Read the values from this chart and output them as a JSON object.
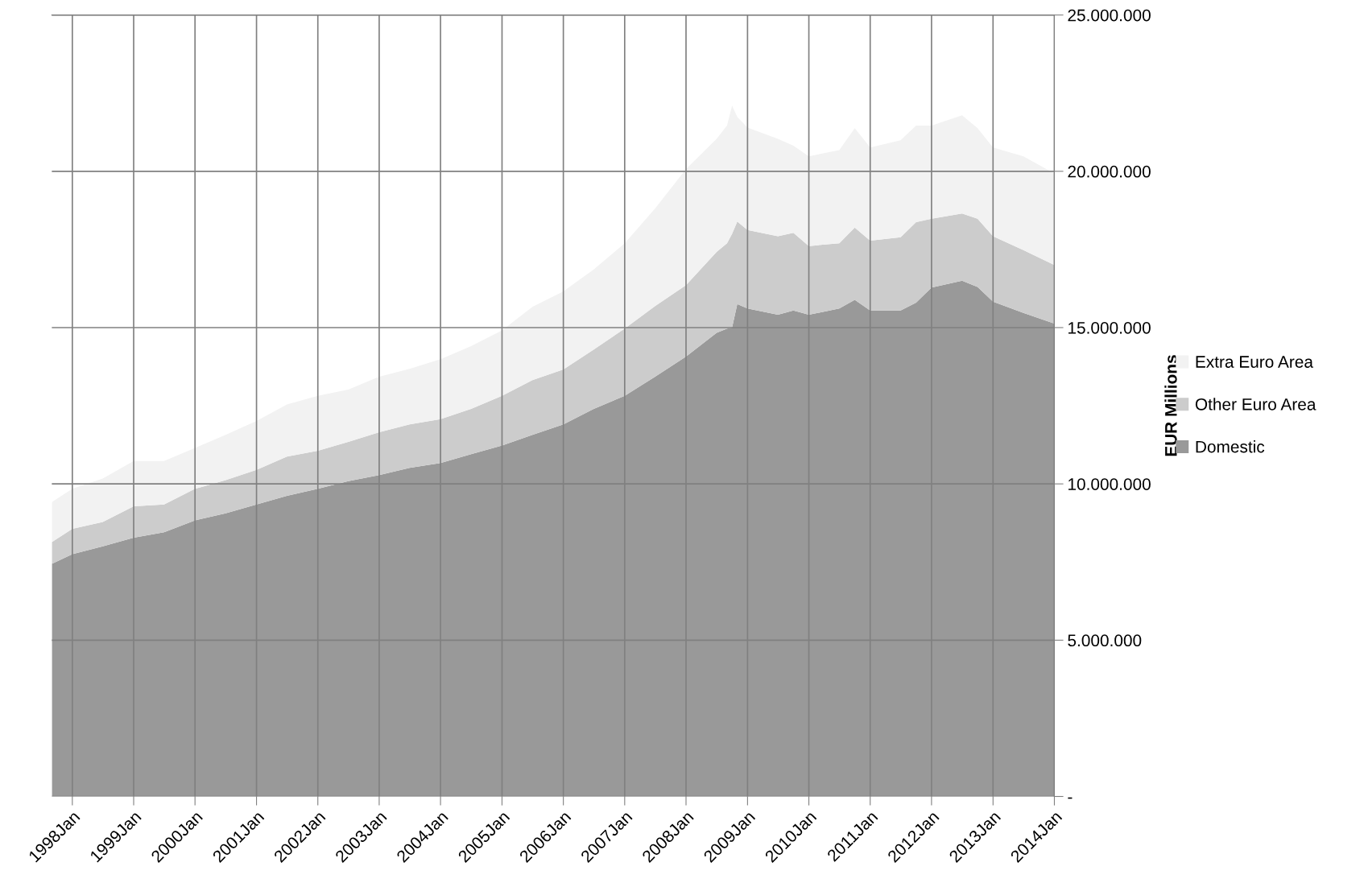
{
  "chart_data": {
    "type": "area",
    "stacked": true,
    "ylabel": "EUR Millions",
    "x": [
      "1997-09",
      "1998-01",
      "1998-07",
      "1999-01",
      "1999-07",
      "2000-01",
      "2000-07",
      "2001-01",
      "2001-07",
      "2002-01",
      "2002-07",
      "2003-01",
      "2003-07",
      "2004-01",
      "2004-07",
      "2005-01",
      "2005-07",
      "2006-01",
      "2006-07",
      "2007-01",
      "2007-07",
      "2008-01",
      "2008-07",
      "2008-09",
      "2008-10",
      "2008-11",
      "2009-01",
      "2009-07",
      "2009-10",
      "2010-01",
      "2010-07",
      "2010-10",
      "2011-01",
      "2011-07",
      "2011-10",
      "2012-01",
      "2012-07",
      "2012-10",
      "2013-01",
      "2013-07",
      "2014-01"
    ],
    "series": [
      {
        "name": "Domestic",
        "color": "#999999",
        "values": [
          7440000,
          7750000,
          8000000,
          8280000,
          8450000,
          8830000,
          9060000,
          9340000,
          9620000,
          9840000,
          10090000,
          10280000,
          10510000,
          10670000,
          10950000,
          11230000,
          11570000,
          11900000,
          12400000,
          12820000,
          13430000,
          14070000,
          14830000,
          14970000,
          15000000,
          15750000,
          15610000,
          15410000,
          15550000,
          15410000,
          15610000,
          15890000,
          15550000,
          15550000,
          15800000,
          16280000,
          16500000,
          16300000,
          15830000,
          15470000,
          15130000
        ]
      },
      {
        "name": "Other Euro Area",
        "color": "#cccccc",
        "values": [
          700000,
          810000,
          780000,
          1000000,
          890000,
          1010000,
          1060000,
          1110000,
          1250000,
          1220000,
          1250000,
          1370000,
          1390000,
          1400000,
          1450000,
          1590000,
          1750000,
          1760000,
          1900000,
          2150000,
          2260000,
          2290000,
          2590000,
          2730000,
          3000000,
          2640000,
          2510000,
          2510000,
          2480000,
          2200000,
          2090000,
          2310000,
          2230000,
          2340000,
          2570000,
          2200000,
          2150000,
          2180000,
          2090000,
          2010000,
          1870000
        ]
      },
      {
        "name": "Extra Euro Area",
        "color": "#f2f2f2",
        "values": [
          1280000,
          1280000,
          1390000,
          1450000,
          1390000,
          1310000,
          1450000,
          1560000,
          1670000,
          1760000,
          1680000,
          1780000,
          1780000,
          1920000,
          2010000,
          2090000,
          2340000,
          2500000,
          2560000,
          2730000,
          3120000,
          3710000,
          3620000,
          3760000,
          4100000,
          3350000,
          3280000,
          3120000,
          2790000,
          2870000,
          2980000,
          3180000,
          2980000,
          3100000,
          3090000,
          2980000,
          3140000,
          2900000,
          2840000,
          3000000,
          2930000
        ]
      }
    ],
    "xlim": [
      "1997-09",
      "2014-01"
    ],
    "xticks": [
      {
        "value": "1998-01",
        "label": "1998Jan"
      },
      {
        "value": "1999-01",
        "label": "1999Jan"
      },
      {
        "value": "2000-01",
        "label": "2000Jan"
      },
      {
        "value": "2001-01",
        "label": "2001Jan"
      },
      {
        "value": "2002-01",
        "label": "2002Jan"
      },
      {
        "value": "2003-01",
        "label": "2003Jan"
      },
      {
        "value": "2004-01",
        "label": "2004Jan"
      },
      {
        "value": "2005-01",
        "label": "2005Jan"
      },
      {
        "value": "2006-01",
        "label": "2006Jan"
      },
      {
        "value": "2007-01",
        "label": "2007Jan"
      },
      {
        "value": "2008-01",
        "label": "2008Jan"
      },
      {
        "value": "2009-01",
        "label": "2009Jan"
      },
      {
        "value": "2010-01",
        "label": "2010Jan"
      },
      {
        "value": "2011-01",
        "label": "2011Jan"
      },
      {
        "value": "2012-01",
        "label": "2012Jan"
      },
      {
        "value": "2013-01",
        "label": "2013Jan"
      },
      {
        "value": "2014-01",
        "label": "2014Jan"
      }
    ],
    "ylim": [
      0,
      25000000
    ],
    "yticks": [
      {
        "value": 0,
        "label": "-"
      },
      {
        "value": 5000000,
        "label": "5.000.000"
      },
      {
        "value": 10000000,
        "label": "10.000.000"
      },
      {
        "value": 15000000,
        "label": "15.000.000"
      },
      {
        "value": 20000000,
        "label": "20.000.000"
      },
      {
        "value": 25000000,
        "label": "25.000.000"
      }
    ],
    "grid": true,
    "legend": "right"
  }
}
